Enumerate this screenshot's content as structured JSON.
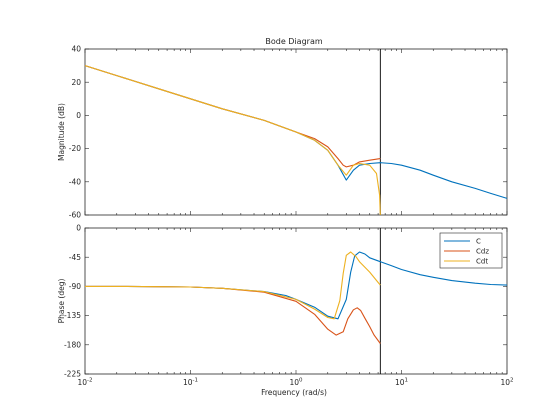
{
  "chart_data": {
    "type": "line",
    "title": "Bode Diagram",
    "xlabel": "Frequency  (rad/s)",
    "x_scale": "log",
    "xlim": [
      0.01,
      100
    ],
    "x_ticks": [
      0.01,
      0.1,
      1,
      10,
      100
    ],
    "x_tick_labels": [
      {
        "base": "10",
        "exp": "-2"
      },
      {
        "base": "10",
        "exp": "-1"
      },
      {
        "base": "10",
        "exp": "0"
      },
      {
        "base": "10",
        "exp": "1"
      },
      {
        "base": "10",
        "exp": "2"
      }
    ],
    "vertical_marker_x": 6.3,
    "grid": false,
    "colors": {
      "C": "#0072bd",
      "Cdz": "#d95319",
      "Cdt": "#edb120"
    },
    "legend": {
      "placement": "top-right",
      "panel": "phase",
      "entries": [
        "C",
        "Cdz",
        "Cdt"
      ]
    },
    "panels": [
      {
        "name": "magnitude",
        "ylabel": "Magnitude  (dB)",
        "ylim": [
          -60,
          40
        ],
        "yticks": [
          -60,
          -40,
          -20,
          0,
          20,
          40
        ],
        "ytick_labels": [
          "-60",
          "-40",
          "-20",
          "0",
          "20",
          "40"
        ],
        "series": [
          {
            "name": "C",
            "x": [
              0.01,
              0.02,
              0.05,
              0.1,
              0.2,
              0.5,
              1,
              1.5,
              2,
              2.5,
              3,
              3.5,
              4,
              5,
              6.3,
              8,
              10,
              15,
              20,
              30,
              50,
              70,
              100
            ],
            "y": [
              30,
              24,
              16,
              10,
              4,
              -3,
              -10,
              -15,
              -21,
              -30,
              -39,
              -33,
              -30,
              -29,
              -28.5,
              -29,
              -30,
              -33,
              -36,
              -40,
              -44,
              -47,
              -50
            ]
          },
          {
            "name": "Cdz",
            "x": [
              0.01,
              0.02,
              0.05,
              0.1,
              0.2,
              0.5,
              1,
              1.5,
              2,
              2.5,
              2.8,
              3,
              3.5,
              4,
              5,
              6.3
            ],
            "y": [
              30,
              24,
              16,
              10,
              4,
              -3,
              -10,
              -14,
              -19,
              -26,
              -30,
              -31,
              -30,
              -28,
              -27,
              -26
            ]
          },
          {
            "name": "Cdt",
            "x": [
              0.01,
              0.02,
              0.05,
              0.1,
              0.2,
              0.5,
              1,
              1.5,
              2,
              2.5,
              3,
              3.5,
              4,
              5,
              5.8,
              6.2,
              6.3
            ],
            "y": [
              30,
              24,
              16,
              10,
              4,
              -3,
              -10,
              -15,
              -21,
              -30,
              -36,
              -30,
              -29,
              -30,
              -35,
              -48,
              -60
            ]
          }
        ]
      },
      {
        "name": "phase",
        "ylabel": "Phase  (deg)",
        "ylim": [
          -225,
          0
        ],
        "yticks": [
          -225,
          -180,
          -135,
          -90,
          -45,
          0
        ],
        "ytick_labels": [
          "-225",
          "-180",
          "-135",
          "-90",
          "-45",
          "0"
        ],
        "series": [
          {
            "name": "C",
            "x": [
              0.01,
              0.02,
              0.05,
              0.1,
              0.2,
              0.5,
              0.8,
              1,
              1.5,
              2,
              2.5,
              3,
              3.3,
              3.6,
              4,
              4.5,
              5,
              6.3,
              8,
              10,
              15,
              20,
              30,
              50,
              70,
              100
            ],
            "y": [
              -90,
              -90,
              -90.5,
              -91,
              -93,
              -98,
              -104,
              -110,
              -122,
              -136,
              -140,
              -110,
              -68,
              -43,
              -37,
              -40,
              -46,
              -52,
              -58,
              -64,
              -72,
              -76,
              -81,
              -85,
              -87,
              -88
            ]
          },
          {
            "name": "Cdz",
            "x": [
              0.01,
              0.02,
              0.05,
              0.1,
              0.2,
              0.5,
              1,
              1.5,
              2,
              2.4,
              2.8,
              3.1,
              3.5,
              3.8,
              4.1,
              4.5,
              5,
              5.5,
              6.3
            ],
            "y": [
              -90,
              -90,
              -90.5,
              -91,
              -93,
              -99,
              -113,
              -133,
              -156,
              -165,
              -160,
              -140,
              -126,
              -123,
              -127,
              -139,
              -152,
              -165,
              -178
            ]
          },
          {
            "name": "Cdt",
            "x": [
              0.01,
              0.02,
              0.05,
              0.1,
              0.2,
              0.5,
              1,
              1.5,
              2,
              2.3,
              2.6,
              2.8,
              3,
              3.3,
              3.7,
              4,
              5,
              6.3
            ],
            "y": [
              -90,
              -90,
              -90.5,
              -91,
              -93,
              -98,
              -110,
              -125,
              -138,
              -140,
              -112,
              -70,
              -42,
              -37,
              -44,
              -52,
              -68,
              -88
            ]
          }
        ]
      }
    ]
  }
}
